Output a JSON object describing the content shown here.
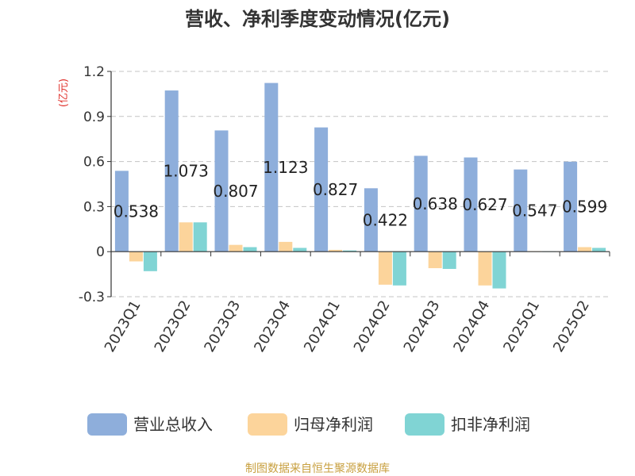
{
  "chart_data": {
    "type": "bar",
    "title": "营收、净利季度变动情况(亿元)",
    "unit_label": "(亿元)",
    "categories": [
      "2023Q1",
      "2023Q2",
      "2023Q3",
      "2023Q4",
      "2024Q1",
      "2024Q2",
      "2024Q3",
      "2024Q4",
      "2025Q1",
      "2025Q2"
    ],
    "series": [
      {
        "name": "营业总收入",
        "color": "#8eaedb",
        "values": [
          0.538,
          1.073,
          0.807,
          1.123,
          0.827,
          0.422,
          0.638,
          0.627,
          0.547,
          0.599
        ]
      },
      {
        "name": "归母净利润",
        "color": "#fcd49b",
        "values": [
          -0.065,
          0.195,
          0.045,
          0.065,
          0.012,
          -0.22,
          -0.11,
          -0.225,
          0.003,
          0.03
        ]
      },
      {
        "name": "扣非净利润",
        "color": "#80d4d4",
        "values": [
          -0.13,
          0.195,
          0.03,
          0.025,
          0.008,
          -0.225,
          -0.115,
          -0.245,
          0.002,
          0.025
        ]
      }
    ],
    "data_labels": [
      "0.538",
      "1.073",
      "0.807",
      "1.123",
      "0.827",
      "0.422",
      "0.638",
      "0.627",
      "0.547",
      "0.599"
    ],
    "yticks": [
      "1.2",
      "0.9",
      "0.6",
      "0.3",
      "0",
      "-0.3"
    ],
    "ylim": [
      -0.3,
      1.2
    ],
    "grid": true,
    "legend_position": "bottom",
    "source": "制图数据来自恒生聚源数据库"
  }
}
